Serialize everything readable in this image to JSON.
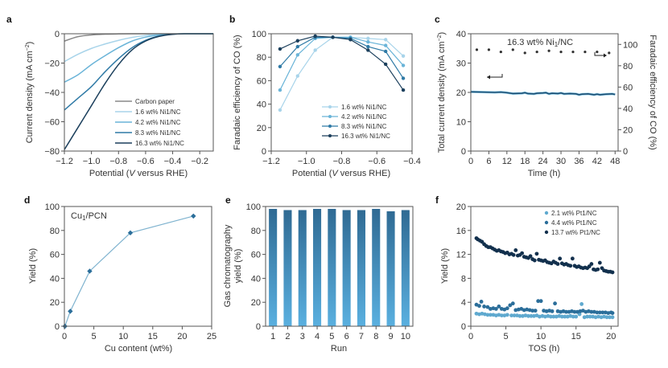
{
  "chart_data": [
    {
      "panel": "a",
      "type": "line",
      "xlabel": "Potential (V versus RHE)",
      "ylabel": "Current density (mA cm^-2)",
      "xlim": [
        -1.2,
        -0.1
      ],
      "ylim": [
        -80,
        0
      ],
      "xticks": [
        -1.2,
        -1.0,
        -0.8,
        -0.6,
        -0.4,
        -0.2
      ],
      "xtick_labels": [
        "−1.2",
        "−1.0",
        "−0.8",
        "−0.6",
        "−0.4",
        "−0.2"
      ],
      "yticks": [
        0,
        -20,
        -40,
        -60,
        -80
      ],
      "ytick_labels": [
        "0",
        "−20",
        "−40",
        "−60",
        "−80"
      ],
      "legend_position": "bottom-right",
      "x": [
        -1.2,
        -1.1,
        -1.0,
        -0.9,
        -0.8,
        -0.7,
        -0.6,
        -0.5,
        -0.4,
        -0.3,
        -0.2,
        -0.1
      ],
      "series": [
        {
          "name": "Carbon paper",
          "color": "#8a8a8a",
          "values": [
            -5,
            -2,
            -0.8,
            -0.3,
            -0.1,
            0,
            0,
            0,
            0,
            0,
            0,
            0
          ]
        },
        {
          "name": "1.6 wt% Ni1/NC",
          "color": "#a8d4ea",
          "values": [
            -19,
            -14,
            -10,
            -7,
            -4.5,
            -2.5,
            -1.2,
            -0.5,
            -0.1,
            0,
            0,
            0
          ]
        },
        {
          "name": "4.2 wt% Ni1/NC",
          "color": "#6ab4d8",
          "values": [
            -33,
            -28,
            -21,
            -15,
            -9.5,
            -5,
            -2.3,
            -0.8,
            -0.2,
            0,
            0,
            0
          ]
        },
        {
          "name": "8.3 wt% Ni1/NC",
          "color": "#2f7aa6",
          "values": [
            -52,
            -44,
            -36,
            -26,
            -17,
            -9.5,
            -4.5,
            -1.5,
            -0.3,
            0,
            0,
            0
          ]
        },
        {
          "name": "16.3 wt% Ni1/NC",
          "color": "#1b3f5c",
          "values": [
            -79,
            -64,
            -49,
            -34,
            -21,
            -11,
            -5,
            -1.8,
            -0.4,
            0,
            0,
            0
          ]
        }
      ]
    },
    {
      "panel": "b",
      "type": "line",
      "xlabel": "Potential (V versus RHE)",
      "ylabel": "Faradaic efficiency of CO (%)",
      "xlim": [
        -1.2,
        -0.4
      ],
      "ylim": [
        0,
        100
      ],
      "xticks": [
        -1.2,
        -1.0,
        -0.8,
        -0.6,
        -0.4
      ],
      "xtick_labels": [
        "−1.2",
        "−1.0",
        "−0.8",
        "−0.6",
        "−0.4"
      ],
      "yticks": [
        0,
        20,
        40,
        60,
        80,
        100
      ],
      "ytick_labels": [
        "0",
        "20",
        "40",
        "60",
        "80",
        "100"
      ],
      "legend_position": "bottom-right",
      "x": [
        -1.15,
        -1.05,
        -0.95,
        -0.85,
        -0.75,
        -0.65,
        -0.55,
        -0.45
      ],
      "series": [
        {
          "name": "1.6 wt% Ni1/NC",
          "color": "#a8d4ea",
          "values": [
            35,
            64,
            86,
            97,
            97,
            96,
            95,
            81
          ]
        },
        {
          "name": "4.2 wt% Ni1/NC",
          "color": "#6ab4d8",
          "values": [
            52,
            82,
            96,
            97,
            97,
            93,
            90,
            73
          ]
        },
        {
          "name": "8.3 wt% Ni1/NC",
          "color": "#2f7aa6",
          "values": [
            72,
            89,
            97,
            97,
            96,
            89,
            85,
            62
          ]
        },
        {
          "name": "16.3 wt% Ni1/NC",
          "color": "#1b3f5c",
          "values": [
            87,
            94,
            98,
            97,
            95,
            86,
            74,
            52
          ]
        }
      ]
    },
    {
      "panel": "c",
      "type": "line",
      "annotation": "16.3 wt% Ni1/NC",
      "xlabel": "Time (h)",
      "ylabel": "Total current density (mA cm^-2)",
      "ylabel_right": "Faradaic efficiency of CO (%)",
      "xlim": [
        0,
        49
      ],
      "ylim": [
        0,
        40
      ],
      "ylim_right": [
        0,
        110
      ],
      "xticks": [
        0,
        6,
        12,
        18,
        24,
        30,
        36,
        42,
        48
      ],
      "xtick_labels": [
        "0",
        "6",
        "12",
        "18",
        "24",
        "30",
        "36",
        "42",
        "48"
      ],
      "yticks": [
        0,
        10,
        20,
        30,
        40
      ],
      "ytick_labels": [
        "0",
        "10",
        "20",
        "30",
        "40"
      ],
      "yticks_right": [
        0,
        20,
        40,
        60,
        80,
        100
      ],
      "ytick_labels_right": [
        "0",
        "20",
        "40",
        "60",
        "80",
        "100"
      ],
      "current": {
        "color": "#1e4f73",
        "x": [
          0,
          4,
          8,
          10,
          12,
          14,
          17,
          18,
          19,
          21,
          22,
          24,
          25,
          26,
          27,
          29,
          30,
          31,
          33,
          35,
          36,
          37,
          39,
          41,
          42,
          43,
          45,
          47,
          48
        ],
        "y": [
          20.2,
          20.1,
          20.0,
          20.1,
          19.9,
          19.6,
          19.7,
          19.9,
          19.6,
          19.5,
          19.7,
          19.8,
          19.9,
          19.5,
          19.7,
          19.6,
          19.8,
          19.5,
          19.6,
          19.5,
          19.2,
          19.4,
          19.5,
          19.2,
          19.4,
          19.2,
          19.4,
          19.5,
          19.3
        ]
      },
      "faradaic_efficiency": {
        "color": "#333333",
        "x": [
          2,
          6,
          10,
          14,
          18,
          22,
          26,
          30,
          34,
          38,
          42,
          46
        ],
        "y": [
          95,
          95,
          93,
          95,
          92,
          93,
          94,
          93,
          93,
          93,
          93,
          92
        ]
      }
    },
    {
      "panel": "d",
      "type": "line",
      "annotation": "Cu1/PCN",
      "xlabel": "Cu content (wt%)",
      "ylabel": "Yield (%)",
      "xlim": [
        0,
        25
      ],
      "ylim": [
        0,
        100
      ],
      "xticks": [
        0,
        5,
        10,
        15,
        20,
        25
      ],
      "xtick_labels": [
        "0",
        "5",
        "10",
        "15",
        "20",
        "25"
      ],
      "yticks": [
        0,
        20,
        40,
        60,
        80,
        100
      ],
      "ytick_labels": [
        "0",
        "20",
        "40",
        "60",
        "80",
        "100"
      ],
      "color": "#2b6e9a",
      "line_color": "#7fb3cf",
      "x": [
        0.1,
        1.0,
        4.3,
        11.2,
        21.9
      ],
      "y": [
        0,
        12.5,
        46,
        78,
        92
      ]
    },
    {
      "panel": "e",
      "type": "bar",
      "xlabel": "Run",
      "ylabel": "Gas chromatography yield (%)",
      "ylim": [
        0,
        100
      ],
      "yticks": [
        0,
        20,
        40,
        60,
        80,
        100
      ],
      "ytick_labels": [
        "0",
        "20",
        "40",
        "60",
        "80",
        "100"
      ],
      "categories": [
        "1",
        "2",
        "3",
        "4",
        "5",
        "6",
        "7",
        "8",
        "9",
        "10"
      ],
      "values": [
        98,
        97,
        97,
        98,
        98,
        97,
        97,
        98,
        96,
        97
      ],
      "color_top": "#2f6a93",
      "color_bottom": "#5ab0e0"
    },
    {
      "panel": "f",
      "type": "scatter",
      "xlabel": "TOS (h)",
      "ylabel": "Yield (%)",
      "xlim": [
        0,
        21
      ],
      "ylim": [
        0,
        20
      ],
      "xticks": [
        0,
        5,
        10,
        15,
        20
      ],
      "xtick_labels": [
        "0",
        "5",
        "10",
        "15",
        "20"
      ],
      "yticks": [
        0,
        4,
        8,
        12,
        16,
        20
      ],
      "ytick_labels": [
        "0",
        "4",
        "8",
        "12",
        "16",
        "20"
      ],
      "legend_position": "top-right",
      "series": [
        {
          "name": "2.1 wt% Pt1/NC",
          "color": "#5fa9cf",
          "x": [
            0.8,
            1.2,
            1.6,
            2.0,
            2.4,
            2.8,
            3.2,
            3.6,
            4.0,
            4.4,
            4.8,
            5.2,
            5.8,
            6.2,
            6.6,
            7.0,
            7.4,
            7.8,
            8.2,
            8.6,
            9.0,
            9.4,
            9.8,
            10.2,
            10.6,
            11.0,
            11.4,
            11.8,
            12.2,
            12.6,
            13.0,
            13.4,
            13.8,
            14.2,
            14.6,
            15.0,
            15.5,
            15.8,
            16.2,
            16.6,
            17.0,
            17.4,
            17.8,
            18.2,
            18.6,
            19.0,
            19.4,
            19.8,
            20.2
          ],
          "y": [
            2.1,
            2.0,
            2.1,
            2.0,
            1.9,
            1.9,
            1.9,
            1.8,
            1.9,
            1.8,
            1.8,
            1.9,
            1.8,
            1.8,
            1.8,
            1.7,
            1.7,
            1.8,
            1.7,
            1.7,
            1.7,
            1.8,
            1.6,
            1.7,
            1.6,
            1.7,
            1.6,
            1.6,
            1.6,
            1.7,
            1.6,
            1.6,
            1.6,
            1.7,
            1.6,
            1.6,
            2.0,
            3.7,
            1.5,
            1.6,
            1.6,
            1.6,
            1.5,
            1.6,
            1.5,
            1.6,
            1.5,
            1.5,
            1.5
          ]
        },
        {
          "name": "4.4 wt% Pt1/NC",
          "color": "#2b6e9a",
          "x": [
            0.8,
            1.2,
            1.5,
            1.9,
            2.4,
            2.8,
            3.2,
            3.6,
            4.0,
            4.4,
            4.8,
            5.2,
            5.6,
            6.0,
            6.4,
            6.8,
            7.2,
            7.6,
            8.0,
            8.4,
            8.8,
            9.2,
            9.6,
            10.0,
            10.4,
            10.8,
            11.2,
            11.6,
            12.0,
            12.4,
            12.8,
            13.2,
            13.6,
            14.0,
            14.4,
            14.8,
            15.2,
            15.6,
            16.0,
            16.4,
            16.8,
            17.2,
            17.6,
            18.0,
            18.4,
            18.8,
            19.2,
            19.6,
            20.0,
            20.2
          ],
          "y": [
            3.6,
            3.4,
            4.1,
            3.3,
            3.2,
            2.9,
            3.0,
            2.9,
            3.3,
            2.9,
            2.8,
            3.0,
            3.5,
            3.8,
            2.7,
            2.8,
            2.9,
            2.7,
            2.8,
            2.7,
            2.6,
            2.6,
            4.2,
            4.2,
            2.6,
            2.5,
            2.6,
            2.5,
            3.8,
            2.5,
            2.4,
            2.5,
            2.4,
            2.4,
            2.5,
            2.4,
            2.4,
            2.5,
            2.6,
            2.4,
            2.5,
            2.4,
            2.4,
            2.3,
            2.3,
            2.3,
            2.3,
            2.2,
            2.3,
            2.2
          ]
        },
        {
          "name": "13.7 wt% Pt1/NC",
          "color": "#12304d",
          "x": [
            0.8,
            1.0,
            1.3,
            1.6,
            1.9,
            2.2,
            2.5,
            2.8,
            3.1,
            3.4,
            3.7,
            4.0,
            4.3,
            4.6,
            4.9,
            5.2,
            5.5,
            5.8,
            6.1,
            6.4,
            6.7,
            7.0,
            7.3,
            7.6,
            7.9,
            8.2,
            8.5,
            8.8,
            9.1,
            9.4,
            9.7,
            10.0,
            10.3,
            10.6,
            10.9,
            11.2,
            11.5,
            11.8,
            12.1,
            12.4,
            12.7,
            13.0,
            13.3,
            13.6,
            13.9,
            14.2,
            14.5,
            14.8,
            15.1,
            15.4,
            15.7,
            16.0,
            16.3,
            16.6,
            16.9,
            17.2,
            17.5,
            17.8,
            18.1,
            18.4,
            18.7,
            19.0,
            19.3,
            19.6,
            19.9,
            20.2
          ],
          "y": [
            14.7,
            14.5,
            14.3,
            14.1,
            13.7,
            13.4,
            13.2,
            13.2,
            13.0,
            12.8,
            12.6,
            12.7,
            12.5,
            12.4,
            12.2,
            12.3,
            12.0,
            12.1,
            11.9,
            12.7,
            11.8,
            11.9,
            12.2,
            11.6,
            11.5,
            11.4,
            11.7,
            11.2,
            11.0,
            12.1,
            11.1,
            11.0,
            10.9,
            11.0,
            10.7,
            10.6,
            10.5,
            10.8,
            10.6,
            10.4,
            11.3,
            10.5,
            10.3,
            10.4,
            10.2,
            10.1,
            11.3,
            10.1,
            9.9,
            10.0,
            9.8,
            9.7,
            9.8,
            9.7,
            10.0,
            10.4,
            9.5,
            9.4,
            9.5,
            10.6,
            9.7,
            9.3,
            9.2,
            9.1,
            9.1,
            9.0
          ]
        }
      ]
    }
  ],
  "panels": {
    "a": {
      "letter": "a",
      "xlabel": "Potential (",
      "xlabel_italic": "V",
      "xlabel_rest": " versus RHE)",
      "ylabel": "Current density (mA cm",
      "ylabel_sup": "−2",
      "ylabel_close": ")"
    },
    "b": {
      "letter": "b",
      "xlabel": "Potential (",
      "xlabel_italic": "V",
      "xlabel_rest": " versus RHE)",
      "ylabel": "Faradaic efficiency of CO (%)"
    },
    "c": {
      "letter": "c",
      "xlabel": "Time (h)",
      "ylabel": "Total current density (mA cm",
      "ylabel_sup": "−2",
      "ylabel_close": ")",
      "ylabel_right": "Faradaic efficiency of CO (%)",
      "annotation": "16.3 wt% Ni",
      "annotation_sub": "1",
      "annotation_rest": "/NC"
    },
    "d": {
      "letter": "d",
      "xlabel": "Cu content (wt%)",
      "ylabel": "Yield (%)",
      "annotation": "Cu",
      "annotation_sub": "1",
      "annotation_rest": "/PCN"
    },
    "e": {
      "letter": "e",
      "xlabel": "Run",
      "ylabel_line1": "Gas chromatography",
      "ylabel_line2": "yield (%)"
    },
    "f": {
      "letter": "f",
      "xlabel": "TOS (h)",
      "ylabel": "Yield (%)"
    }
  }
}
